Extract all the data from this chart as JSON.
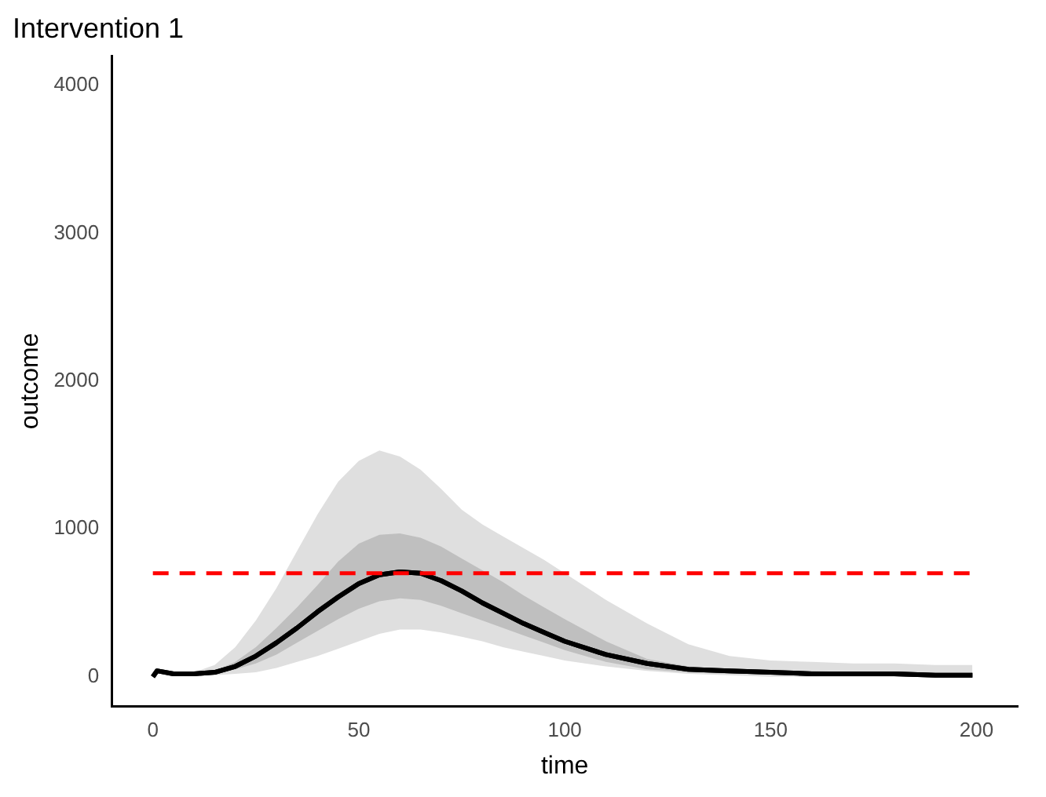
{
  "chart_data": {
    "type": "line",
    "title": "Intervention 1",
    "xlabel": "time",
    "ylabel": "outcome",
    "x": [
      0,
      1,
      5,
      10,
      15,
      20,
      25,
      30,
      35,
      40,
      45,
      50,
      55,
      60,
      65,
      70,
      75,
      80,
      85,
      90,
      95,
      100,
      110,
      120,
      130,
      140,
      150,
      160,
      170,
      180,
      190,
      199
    ],
    "series": [
      {
        "color": "#000000",
        "values": [
          0,
          40,
          20,
          20,
          30,
          70,
          140,
          230,
          330,
          440,
          540,
          630,
          690,
          710,
          700,
          650,
          580,
          500,
          430,
          360,
          300,
          240,
          150,
          90,
          50,
          40,
          30,
          20,
          20,
          20,
          10,
          10
        ],
        "lower": [
          0,
          30,
          20,
          10,
          10,
          20,
          30,
          60,
          100,
          140,
          190,
          240,
          290,
          320,
          320,
          300,
          270,
          240,
          200,
          170,
          140,
          110,
          70,
          40,
          20,
          10,
          0,
          0,
          0,
          0,
          0,
          0
        ],
        "upper": [
          0,
          50,
          30,
          30,
          80,
          200,
          380,
          600,
          850,
          1100,
          1320,
          1460,
          1530,
          1490,
          1400,
          1270,
          1130,
          1030,
          950,
          870,
          790,
          700,
          520,
          360,
          220,
          140,
          110,
          100,
          90,
          90,
          80,
          80
        ]
      },
      {
        "color": "#000000",
        "values": [
          0,
          40,
          20,
          20,
          30,
          70,
          140,
          230,
          330,
          440,
          540,
          630,
          690,
          710,
          700,
          650,
          580,
          500,
          430,
          360,
          300,
          240,
          150,
          90,
          50,
          40,
          30,
          20,
          20,
          20,
          10,
          10
        ],
        "lower": [
          0,
          30,
          20,
          20,
          20,
          50,
          90,
          150,
          230,
          310,
          390,
          460,
          510,
          530,
          520,
          480,
          430,
          380,
          330,
          280,
          230,
          180,
          100,
          50,
          30,
          20,
          20,
          10,
          10,
          10,
          10,
          0
        ],
        "upper": [
          0,
          40,
          30,
          20,
          40,
          100,
          200,
          330,
          470,
          620,
          780,
          900,
          960,
          970,
          940,
          880,
          800,
          720,
          640,
          550,
          470,
          390,
          240,
          120,
          70,
          50,
          40,
          40,
          30,
          20,
          20,
          20
        ]
      }
    ],
    "xlim": [
      -10,
      210
    ],
    "xticks": [
      0,
      50,
      100,
      150,
      200
    ],
    "ylim": [
      -200,
      4200
    ],
    "yticks": [
      0,
      1000,
      2000,
      3000,
      4000
    ],
    "ref_lines": [
      {
        "axis": "y",
        "value": 700,
        "color": "#ff0000",
        "line_style": "dashed"
      }
    ],
    "grid": false,
    "legend": false,
    "marker": "none",
    "line_style": "solid"
  }
}
